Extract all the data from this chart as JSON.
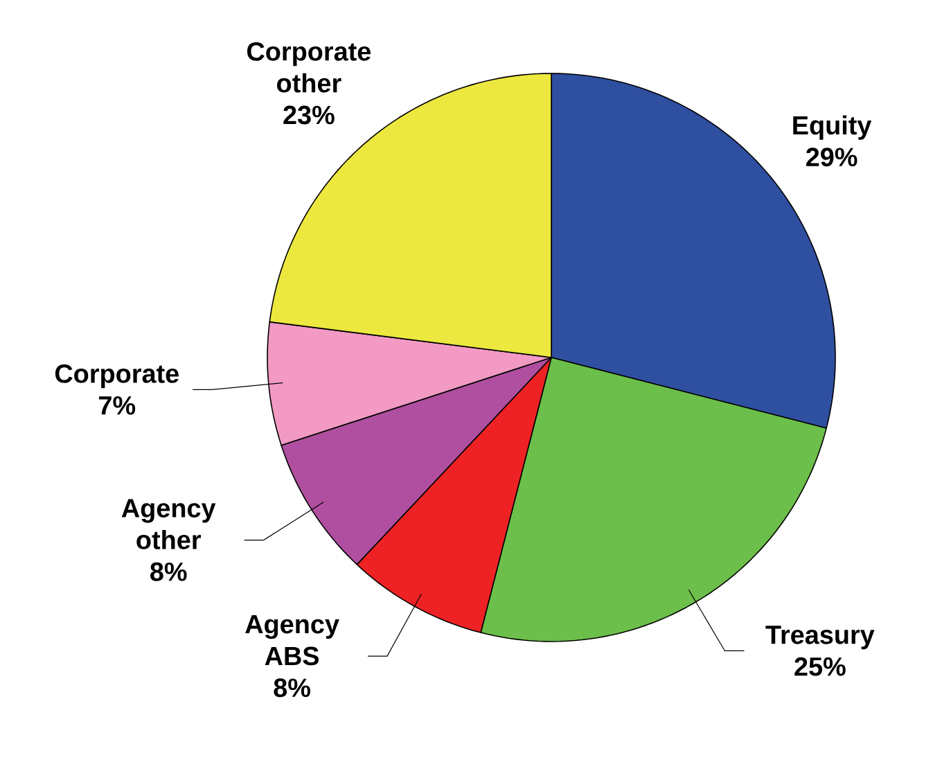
{
  "chart_data": {
    "type": "pie",
    "categories": [
      "Equity",
      "Treasury",
      "Agency ABS",
      "Agency other",
      "Corporate",
      "Corporate other"
    ],
    "values": [
      29,
      25,
      8,
      8,
      7,
      23
    ],
    "value_labels": [
      "29%",
      "25%",
      "8%",
      "8%",
      "7%",
      "23%"
    ],
    "colors": [
      "#2f4fa0",
      "#6cbf4a",
      "#ee2224",
      "#b04f9f",
      "#f29ac3",
      "#ede83f"
    ]
  }
}
